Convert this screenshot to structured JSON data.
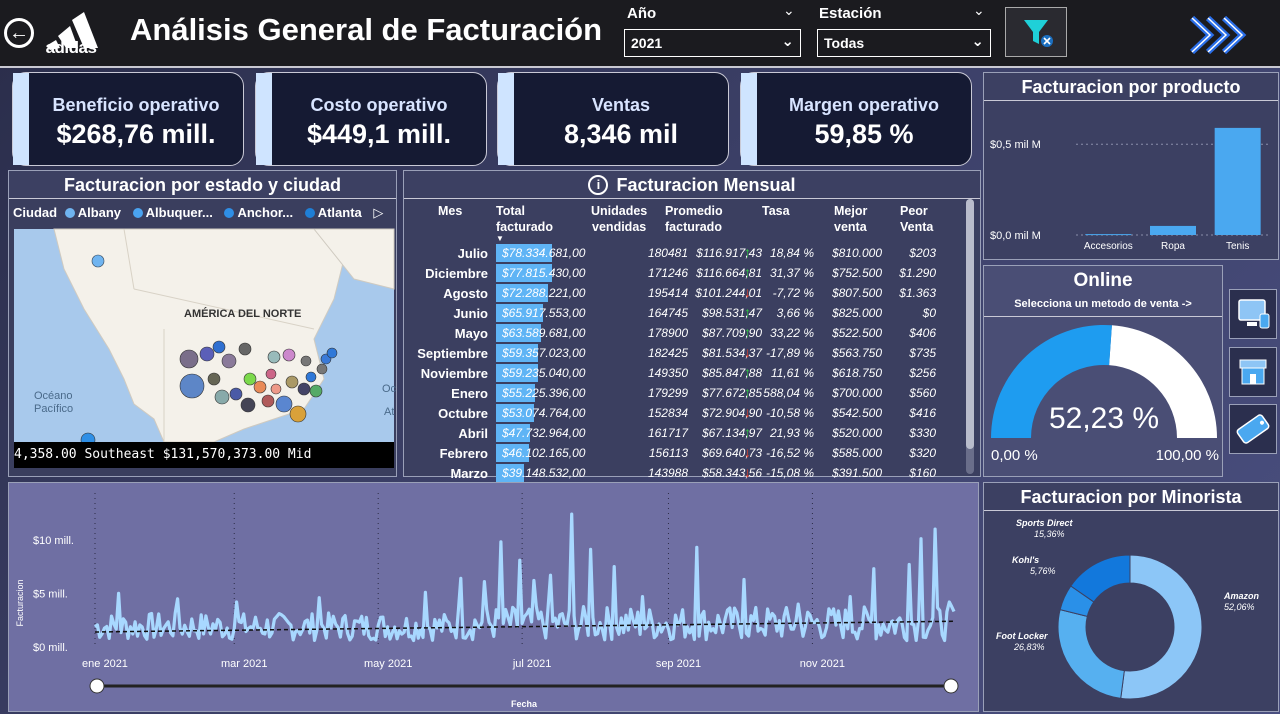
{
  "header": {
    "title": "Análisis General de Facturación",
    "logo_text": "adidas",
    "year_label": "Año",
    "year_value": "2021",
    "station_label": "Estación",
    "station_value": "Todas"
  },
  "kpis": [
    {
      "label": "Beneficio operativo",
      "value": "$268,76 mill."
    },
    {
      "label": "Costo operativo",
      "value": "$449,1 mill."
    },
    {
      "label": "Ventas",
      "value": "8,346 mil"
    },
    {
      "label": "Margen operativo",
      "value": "59,85 %"
    }
  ],
  "map": {
    "title": "Facturacion por estado y ciudad",
    "legend_label": "Ciudad",
    "legend": [
      {
        "name": "Albany",
        "color": "#6fb4f0"
      },
      {
        "name": "Albuquer...",
        "color": "#4aa3f0"
      },
      {
        "name": "Anchor...",
        "color": "#2f8fe6"
      },
      {
        "name": "Atlanta",
        "color": "#1f7fd6"
      }
    ],
    "region_label": "AMÉRICA DEL NORTE",
    "ocean_label_1": "Océano",
    "ocean_label_2": "Pacífico",
    "ocean_label_3": "Oc",
    "ocean_label_4": "At",
    "ticker": "4,358.00     Southeast $131,570,373.00     Mid"
  },
  "table": {
    "title": "Facturacion Mensual",
    "headers": {
      "mes": "Mes",
      "total_1": "Total",
      "total_2": "facturado",
      "uni_1": "Unidades",
      "uni_2": "vendidas",
      "pro_1": "Promedio",
      "pro_2": "facturado",
      "tasa": "Tasa",
      "mej_1": "Mejor",
      "mej_2": "venta",
      "peo_1": "Peor",
      "peo_2": "Venta"
    },
    "rows": [
      {
        "mes": "Julio",
        "total": "$78.334.681,00",
        "t": 78334681,
        "uni": "180481",
        "pro": "$116.917,43",
        "dir": "up",
        "tasa": "18,84 %",
        "mej": "$810.000",
        "peo": "$203"
      },
      {
        "mes": "Diciembre",
        "total": "$77.815.430,00",
        "t": 77815430,
        "uni": "171246",
        "pro": "$116.664,81",
        "dir": "up",
        "tasa": "31,37 %",
        "mej": "$752.500",
        "peo": "$1.290"
      },
      {
        "mes": "Agosto",
        "total": "$72.288.221,00",
        "t": 72288221,
        "uni": "195414",
        "pro": "$101.244,01",
        "dir": "down",
        "tasa": "-7,72 %",
        "mej": "$807.500",
        "peo": "$1.363"
      },
      {
        "mes": "Junio",
        "total": "$65.917.553,00",
        "t": 65917553,
        "uni": "164745",
        "pro": "$98.531,47",
        "dir": "up",
        "tasa": "3,66 %",
        "mej": "$825.000",
        "peo": "$0"
      },
      {
        "mes": "Mayo",
        "total": "$63.589.681,00",
        "t": 63589681,
        "uni": "178900",
        "pro": "$87.709,90",
        "dir": "up",
        "tasa": "33,22 %",
        "mej": "$522.500",
        "peo": "$406"
      },
      {
        "mes": "Septiembre",
        "total": "$59.357.023,00",
        "t": 59357023,
        "uni": "182425",
        "pro": "$81.534,37",
        "dir": "down",
        "tasa": "-17,89 %",
        "mej": "$563.750",
        "peo": "$735"
      },
      {
        "mes": "Noviembre",
        "total": "$59.235.040,00",
        "t": 59235040,
        "uni": "149350",
        "pro": "$85.847,88",
        "dir": "up",
        "tasa": "11,61 %",
        "mej": "$618.750",
        "peo": "$256"
      },
      {
        "mes": "Enero",
        "total": "$55.225.396,00",
        "t": 55225396,
        "uni": "179299",
        "pro": "$77.672,85",
        "dir": "up",
        "tasa": "588,04 %",
        "mej": "$700.000",
        "peo": "$560"
      },
      {
        "mes": "Octubre",
        "total": "$53.074.764,00",
        "t": 53074764,
        "uni": "152834",
        "pro": "$72.904,90",
        "dir": "down",
        "tasa": "-10,58 %",
        "mej": "$542.500",
        "peo": "$416"
      },
      {
        "mes": "Abril",
        "total": "$47.732.964,00",
        "t": 47732964,
        "uni": "161717",
        "pro": "$67.134,97",
        "dir": "up",
        "tasa": "21,93 %",
        "mej": "$520.000",
        "peo": "$330"
      },
      {
        "mes": "Febrero",
        "total": "$46.102.165,00",
        "t": 46102165,
        "uni": "156113",
        "pro": "$69.640,73",
        "dir": "down",
        "tasa": "-16,52 %",
        "mej": "$585.000",
        "peo": "$320"
      },
      {
        "mes": "Marzo",
        "total": "$39.148.532,00",
        "t": 39148532,
        "uni": "143988",
        "pro": "$58.343,56",
        "dir": "down",
        "tasa": "-15,08 %",
        "mej": "$391.500",
        "peo": "$160"
      }
    ]
  },
  "online": {
    "title": "Online",
    "subtitle": "Selecciona un metodo de venta ->",
    "value": "52,23 %",
    "fraction": 0.5223,
    "min_label": "0,00 %",
    "max_label": "100,00 %"
  },
  "chart_data": [
    {
      "type": "bar",
      "title": "Facturacion por producto",
      "categories": [
        "Accesorios",
        "Ropa",
        "Tenis"
      ],
      "values": [
        0.005,
        0.05,
        0.59
      ],
      "yticks": [
        "$0,5 mil M",
        "$0,0 mil M"
      ],
      "ytick_values": [
        0.5,
        0.0
      ],
      "ylim": [
        0,
        0.65
      ],
      "color": "#4aa8f0"
    },
    {
      "type": "line",
      "xlabel": "Fecha",
      "ylabel": "Facturacion",
      "yticks": [
        "$10 mill.",
        "$5 mill.",
        "$0 mill."
      ],
      "ytick_values": [
        10,
        5,
        0
      ],
      "xticks": [
        "ene 2021",
        "mar 2021",
        "may 2021",
        "jul 2021",
        "sep 2021",
        "nov 2021"
      ],
      "ylim": [
        0,
        12.5
      ],
      "trend": [
        1.4,
        2.4
      ],
      "color": "#a8d8ff",
      "days": 365,
      "spikes": [
        [
          10,
          5.0
        ],
        [
          35,
          4.5
        ],
        [
          60,
          4.2
        ],
        [
          95,
          4.6
        ],
        [
          140,
          5.1
        ],
        [
          155,
          6.4
        ],
        [
          165,
          6.1
        ],
        [
          172,
          9.8
        ],
        [
          180,
          8.1
        ],
        [
          186,
          6.2
        ],
        [
          193,
          6.7
        ],
        [
          202,
          12.4
        ],
        [
          210,
          9.1
        ],
        [
          220,
          7.5
        ],
        [
          232,
          4.7
        ],
        [
          255,
          9.3
        ],
        [
          275,
          6.3
        ],
        [
          298,
          4.0
        ],
        [
          320,
          4.7
        ],
        [
          330,
          7.3
        ],
        [
          345,
          7.7
        ],
        [
          350,
          10.1
        ],
        [
          356,
          11.0
        ],
        [
          362,
          4.2
        ]
      ]
    },
    {
      "type": "pie",
      "title": "Facturacion por Minorista",
      "slices": [
        {
          "name": "Amazon",
          "label": "52,06%",
          "value": 52.06,
          "color": "#8cc6f7"
        },
        {
          "name": "Foot Locker",
          "label": "26,83%",
          "value": 26.83,
          "color": "#56b0f0"
        },
        {
          "name": "Kohl's",
          "label": "5,76%",
          "value": 5.76,
          "color": "#2a90e8"
        },
        {
          "name": "Sports Direct",
          "label": "15,36%",
          "value": 15.36,
          "color": "#1278dc"
        }
      ]
    }
  ]
}
